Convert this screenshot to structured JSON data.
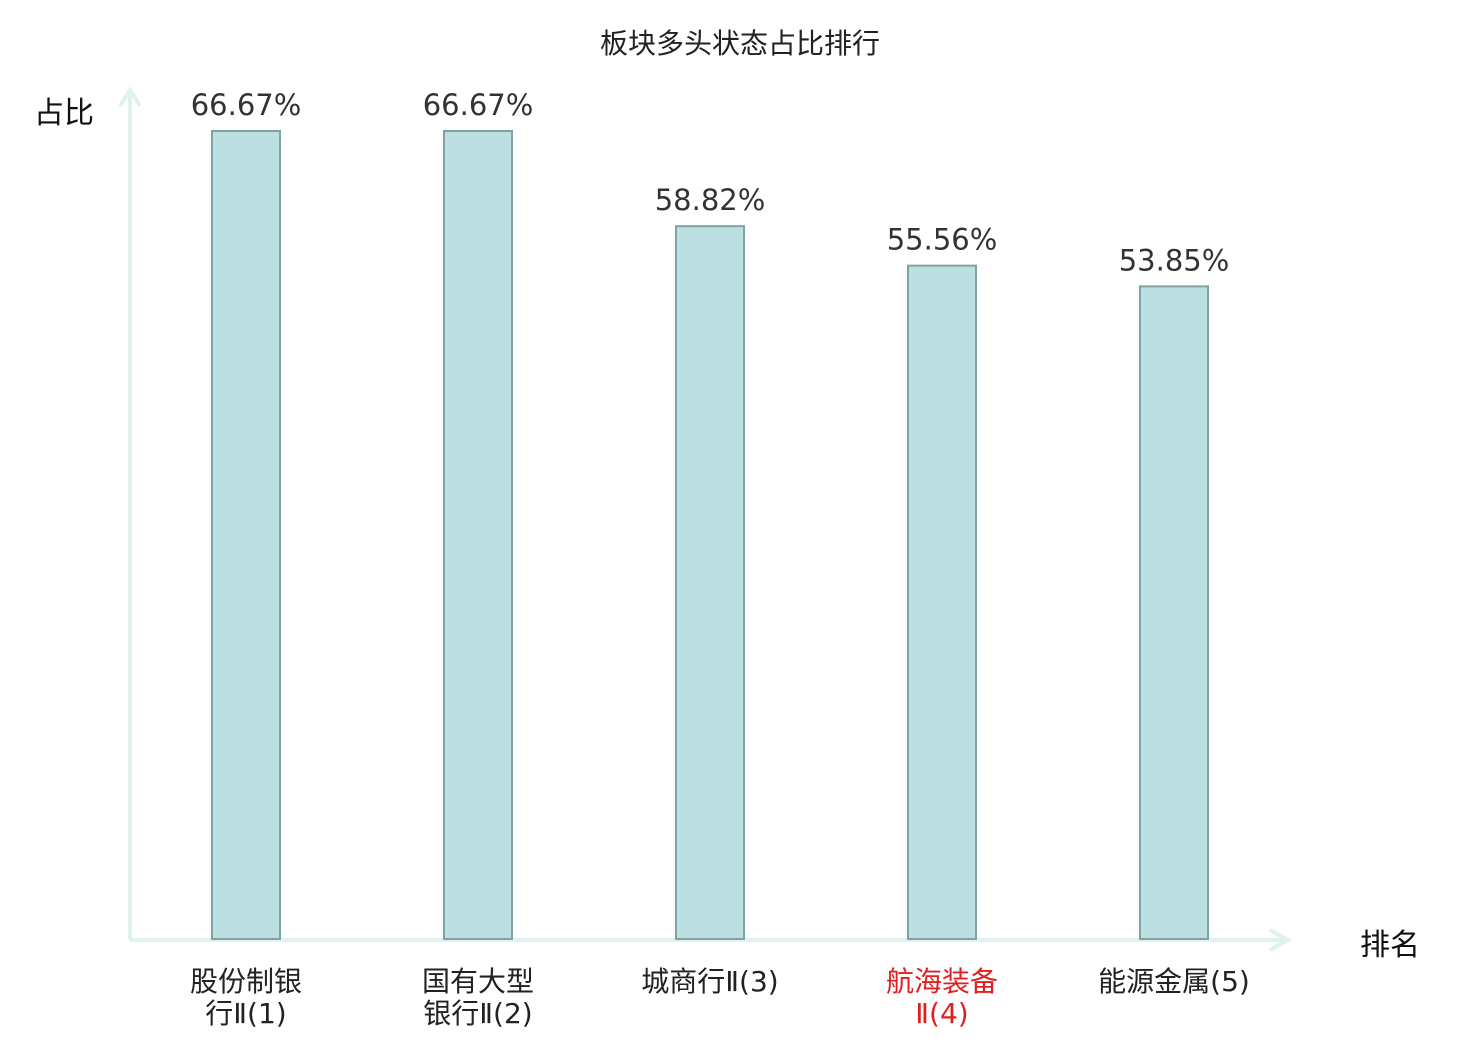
{
  "chart_data": {
    "type": "bar",
    "title": "板块多头状态占比排行",
    "ylabel": "占比",
    "xlabel": "排名",
    "categories": [
      {
        "name": "股份制银行",
        "suffix": "Ⅱ(1)",
        "lines": [
          "股份制银",
          "行Ⅱ(1)"
        ],
        "highlight": false
      },
      {
        "name": "国有大型银行",
        "suffix": "Ⅱ(2)",
        "lines": [
          "国有大型",
          "银行Ⅱ(2)"
        ],
        "highlight": false
      },
      {
        "name": "城商行",
        "suffix": "Ⅱ(3)",
        "lines": [
          "城商行Ⅱ(3)"
        ],
        "highlight": false
      },
      {
        "name": "航海装备",
        "suffix": "Ⅱ(4)",
        "lines": [
          "航海装备",
          "Ⅱ(4)"
        ],
        "highlight": true
      },
      {
        "name": "能源金属",
        "suffix": "(5)",
        "lines": [
          "能源金属(5)"
        ],
        "highlight": false
      }
    ],
    "values": [
      66.67,
      66.67,
      58.82,
      55.56,
      53.85
    ],
    "value_labels": [
      "66.67%",
      "66.67%",
      "58.82%",
      "55.56%",
      "53.85%"
    ],
    "ylim": [
      0,
      66.67
    ],
    "grid": false,
    "legend": "none"
  },
  "colors": {
    "bar_fill": "#bce0e1",
    "bar_stroke": "#7fa3a4",
    "axis": "#dff2ef",
    "highlight_text": "#e02020",
    "text": "#222222"
  }
}
